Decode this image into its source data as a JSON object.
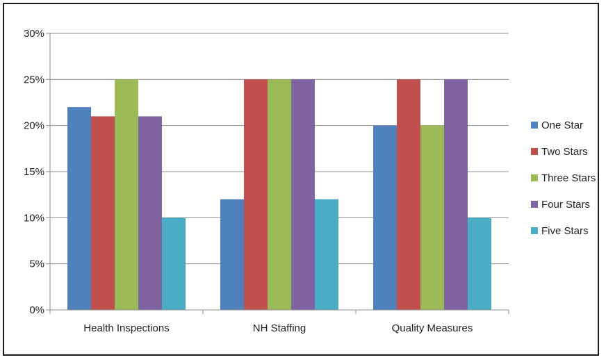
{
  "chart_data": {
    "type": "bar",
    "categories": [
      "Health Inspections",
      "NH Staffing",
      "Quality Measures"
    ],
    "series": [
      {
        "name": "One Star",
        "values": [
          22,
          12,
          20
        ],
        "color": "#4F81BD"
      },
      {
        "name": "Two Stars",
        "values": [
          21,
          25,
          25
        ],
        "color": "#C0504D"
      },
      {
        "name": "Three Stars",
        "values": [
          25,
          25,
          20
        ],
        "color": "#9BBB59"
      },
      {
        "name": "Four Stars",
        "values": [
          21,
          25,
          25
        ],
        "color": "#8064A2"
      },
      {
        "name": "Five Stars",
        "values": [
          10,
          12,
          10
        ],
        "color": "#4BACC6"
      }
    ],
    "ylim": [
      0,
      30
    ],
    "yticks": [
      "0%",
      "5%",
      "10%",
      "15%",
      "20%",
      "25%",
      "30%"
    ],
    "ytick_values": [
      0,
      5,
      10,
      15,
      20,
      25,
      30
    ],
    "grid": true,
    "legend_position": "right",
    "title": "",
    "xlabel": "",
    "ylabel": ""
  }
}
